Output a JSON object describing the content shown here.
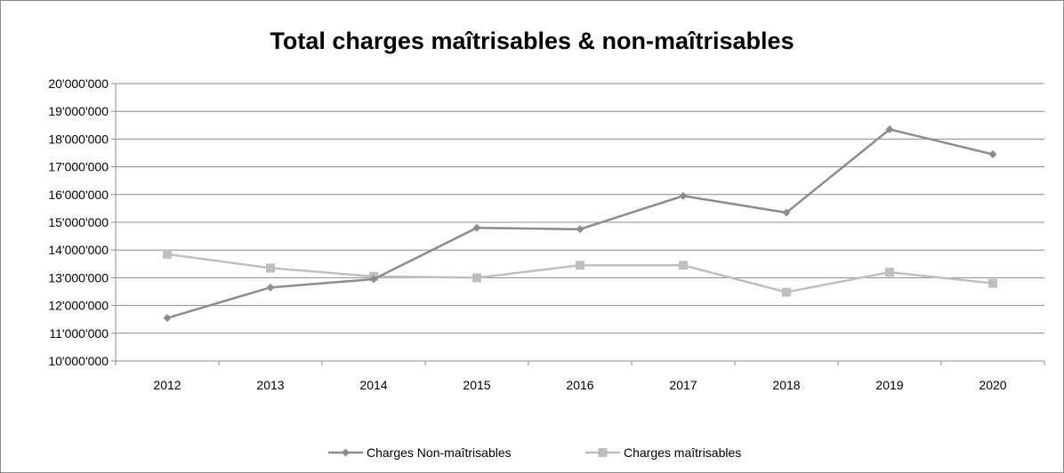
{
  "chart_data": {
    "type": "line",
    "title": "Total charges maîtrisables & non-maîtrisables",
    "xlabel": "",
    "ylabel": "",
    "x": [
      "2012",
      "2013",
      "2014",
      "2015",
      "2016",
      "2017",
      "2018",
      "2019",
      "2020"
    ],
    "ylim": [
      10000000,
      20000000
    ],
    "y_ticks": [
      {
        "value": 10000000,
        "label": "10'000'000"
      },
      {
        "value": 11000000,
        "label": "11'000'000"
      },
      {
        "value": 12000000,
        "label": "12'000'000"
      },
      {
        "value": 13000000,
        "label": "13'000'000"
      },
      {
        "value": 14000000,
        "label": "14'000'000"
      },
      {
        "value": 15000000,
        "label": "15'000'000"
      },
      {
        "value": 16000000,
        "label": "16'000'000"
      },
      {
        "value": 17000000,
        "label": "17'000'000"
      },
      {
        "value": 18000000,
        "label": "18'000'000"
      },
      {
        "value": 19000000,
        "label": "19'000'000"
      },
      {
        "value": 20000000,
        "label": "20'000'000"
      }
    ],
    "grid": true,
    "legend_position": "bottom",
    "series": [
      {
        "name": "Charges Non-maîtrisables",
        "marker": "diamond",
        "color": "#8c8c8c",
        "values": [
          11550000,
          12650000,
          12950000,
          14800000,
          14750000,
          15950000,
          15350000,
          18350000,
          17450000
        ]
      },
      {
        "name": "Charges maîtrisables",
        "marker": "square",
        "color": "#bfbfbf",
        "values": [
          13850000,
          13350000,
          13050000,
          13000000,
          13450000,
          13450000,
          12480000,
          13200000,
          12800000
        ]
      }
    ]
  }
}
